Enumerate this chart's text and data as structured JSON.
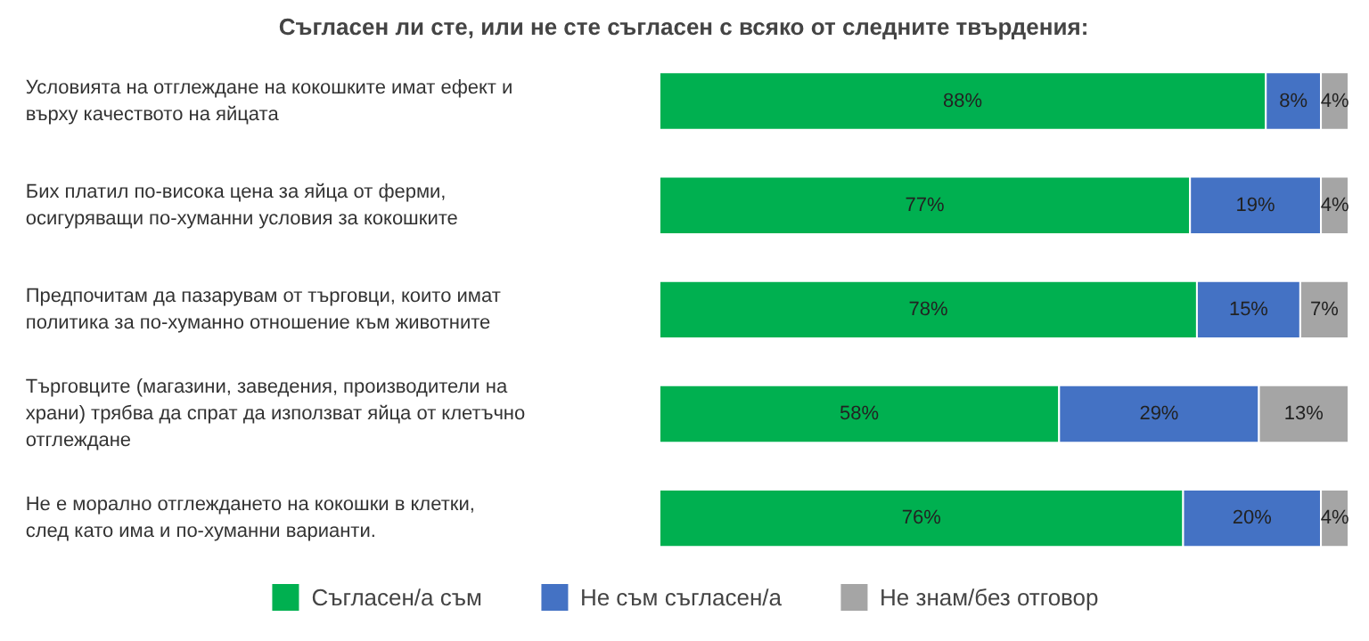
{
  "chart_data": {
    "type": "bar",
    "orientation": "horizontal",
    "stacked": true,
    "title": "Съгласен ли сте, или не сте съгласен с всяко от следните твърдения:",
    "categories": [
      "Условията на отглеждане на кокошките имат ефект и\nвърху качеството на яйцата",
      "Бих платил по-висока цена за яйца от ферми,\nосигуряващи по-хуманни условия за кокошките",
      "Предпочитам да пазарувам от търговци, които имат\nполитика за по-хуманно отношение към животните",
      "Търговците (магазини, заведения, производители на\nхрани) трябва да спрат да използват яйца от клетъчно\nотглеждане",
      "Не е морално отглеждането на кокошки в клетки,\nслед като има и по-хуманни варианти."
    ],
    "series": [
      {
        "name": "Съгласен/а съм",
        "color": "#00b050",
        "values": [
          88,
          77,
          78,
          58,
          76
        ],
        "value_labels": [
          "88%",
          "77%",
          "78%",
          "58%",
          "76%"
        ]
      },
      {
        "name": "Не съм съгласен/а",
        "color": "#4472c4",
        "values": [
          8,
          19,
          15,
          29,
          20
        ],
        "value_labels": [
          "8%",
          "19%",
          "15%",
          "29%",
          "20%"
        ]
      },
      {
        "name": "Не знам/без отговор",
        "color": "#a5a5a5",
        "values": [
          4,
          4,
          7,
          13,
          4
        ],
        "value_labels": [
          "4%",
          "4%",
          "7%",
          "13%",
          "4%"
        ]
      }
    ],
    "xlim": [
      0,
      100
    ],
    "tick_labels": "y",
    "grid": false,
    "legend": "bottom"
  }
}
